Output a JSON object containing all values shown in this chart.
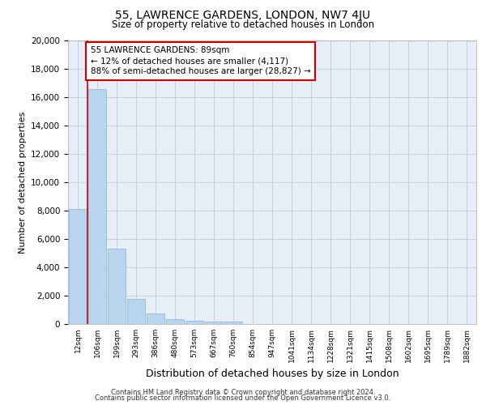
{
  "title": "55, LAWRENCE GARDENS, LONDON, NW7 4JU",
  "subtitle": "Size of property relative to detached houses in London",
  "xlabel": "Distribution of detached houses by size in London",
  "ylabel": "Number of detached properties",
  "categories": [
    "12sqm",
    "106sqm",
    "199sqm",
    "293sqm",
    "386sqm",
    "480sqm",
    "573sqm",
    "667sqm",
    "760sqm",
    "854sqm",
    "947sqm",
    "1041sqm",
    "1134sqm",
    "1228sqm",
    "1321sqm",
    "1415sqm",
    "1508sqm",
    "1602sqm",
    "1695sqm",
    "1789sqm",
    "1882sqm"
  ],
  "values": [
    8100,
    16600,
    5300,
    1750,
    750,
    350,
    230,
    185,
    150,
    0,
    0,
    0,
    0,
    0,
    0,
    0,
    0,
    0,
    0,
    0,
    0
  ],
  "bar_color": "#b8d4ee",
  "bar_edge_color": "#8ab0d4",
  "property_line_color": "#cc0000",
  "property_line_x": 0.5,
  "annotation_text": "55 LAWRENCE GARDENS: 89sqm\n← 12% of detached houses are smaller (4,117)\n88% of semi-detached houses are larger (28,827) →",
  "annotation_box_facecolor": "#ffffff",
  "annotation_border_color": "#cc0000",
  "ylim": [
    0,
    20000
  ],
  "yticks": [
    0,
    2000,
    4000,
    6000,
    8000,
    10000,
    12000,
    14000,
    16000,
    18000,
    20000
  ],
  "background_color": "#e8eef8",
  "grid_color": "#c8d0e0",
  "title_fontsize": 10,
  "subtitle_fontsize": 8.5,
  "footer_line1": "Contains HM Land Registry data © Crown copyright and database right 2024.",
  "footer_line2": "Contains public sector information licensed under the Open Government Licence v3.0."
}
